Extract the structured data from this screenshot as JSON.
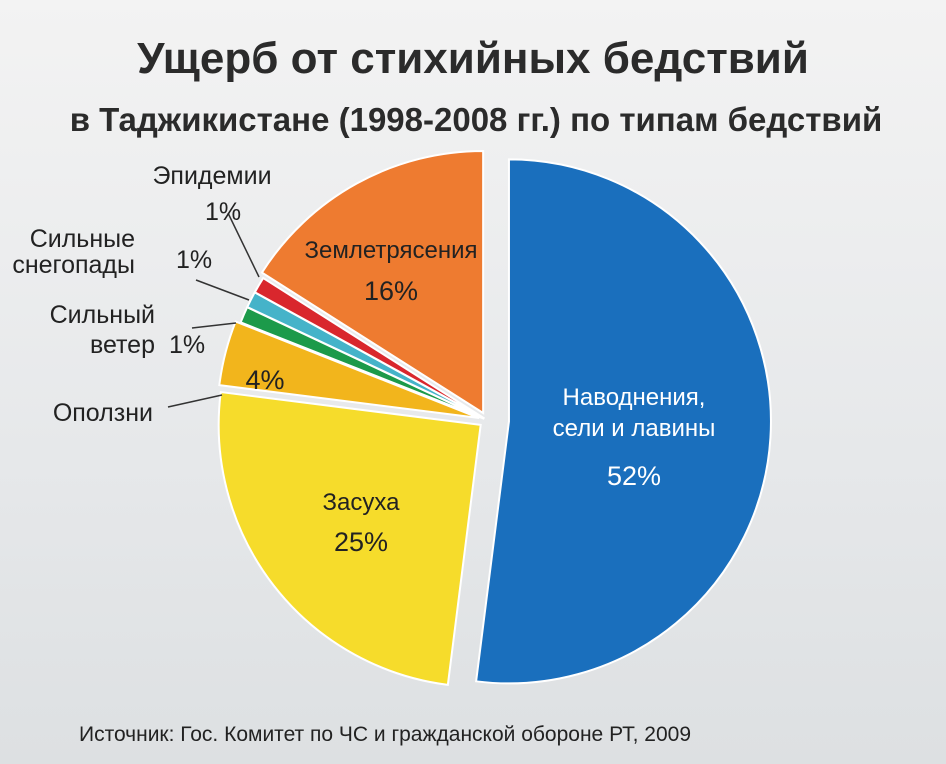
{
  "chart_data": {
    "type": "pie",
    "title": "Ущерб от стихийных бедствий",
    "subtitle": "в Таджикистане (1998-2008 гг.) по типам бедствий",
    "source": "Источник: Гос. Комитет по ЧС и гражданской обороне РТ, 2009",
    "slices": [
      {
        "label_lines": [
          "Наводнения,",
          "сели и лавины"
        ],
        "value": 52,
        "value_text": "52%",
        "color": "#1a6fbd"
      },
      {
        "label_lines": [
          "Засуха"
        ],
        "value": 25,
        "value_text": "25%",
        "color": "#f6dc2b"
      },
      {
        "label_lines": [
          "Оползни"
        ],
        "value": 4,
        "value_text": "4%",
        "color": "#f2b51c"
      },
      {
        "label_lines": [
          "Сильный",
          "ветер"
        ],
        "value": 1,
        "value_text": "1%",
        "color": "#1c9a4a"
      },
      {
        "label_lines": [
          "Сильные",
          "снегопады"
        ],
        "value": 1,
        "value_text": "1%",
        "color": "#45b3c9"
      },
      {
        "label_lines": [
          "Эпидемии"
        ],
        "value": 1,
        "value_text": "1%",
        "color": "#d9272d"
      },
      {
        "label_lines": [
          "Землетрясения"
        ],
        "value": 16,
        "value_text": "16%",
        "color": "#ee7b30"
      }
    ]
  }
}
